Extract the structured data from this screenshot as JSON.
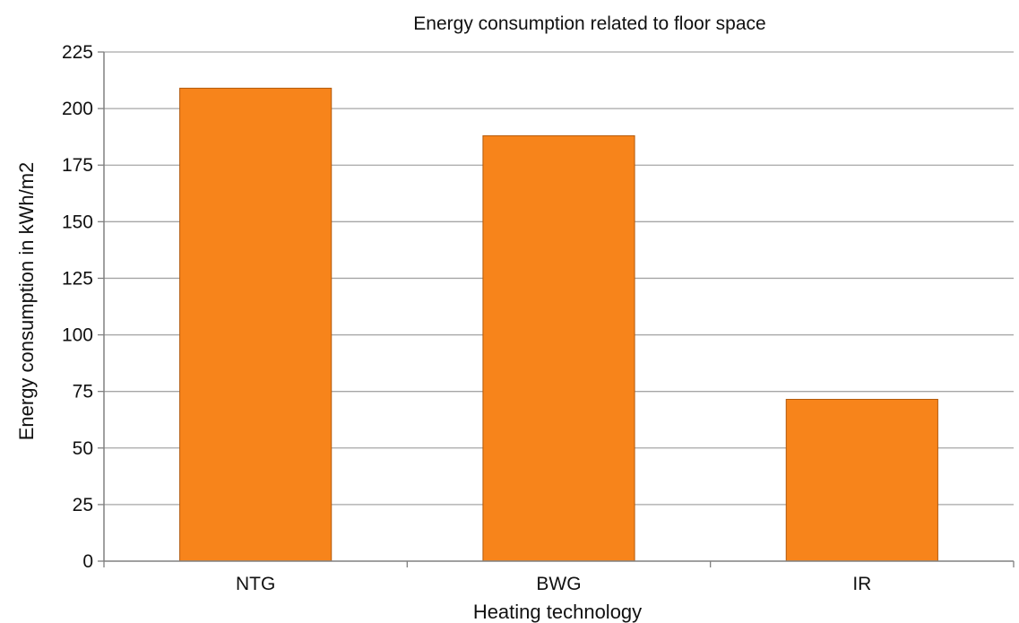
{
  "chart_data": {
    "type": "bar",
    "title": "Energy consumption related to floor space",
    "xlabel": "Heating technology",
    "ylabel": "Energy consumption in kWh/m2",
    "categories": [
      "NTG",
      "BWG",
      "IR"
    ],
    "values": [
      209,
      188,
      71.5
    ],
    "ylim": [
      0,
      225
    ],
    "yticks": [
      0,
      25,
      50,
      75,
      100,
      125,
      150,
      175,
      200,
      225
    ],
    "grid": true,
    "legend": "none",
    "bar_color": "#f7841b",
    "bar_border_color": "#b35a0c"
  }
}
